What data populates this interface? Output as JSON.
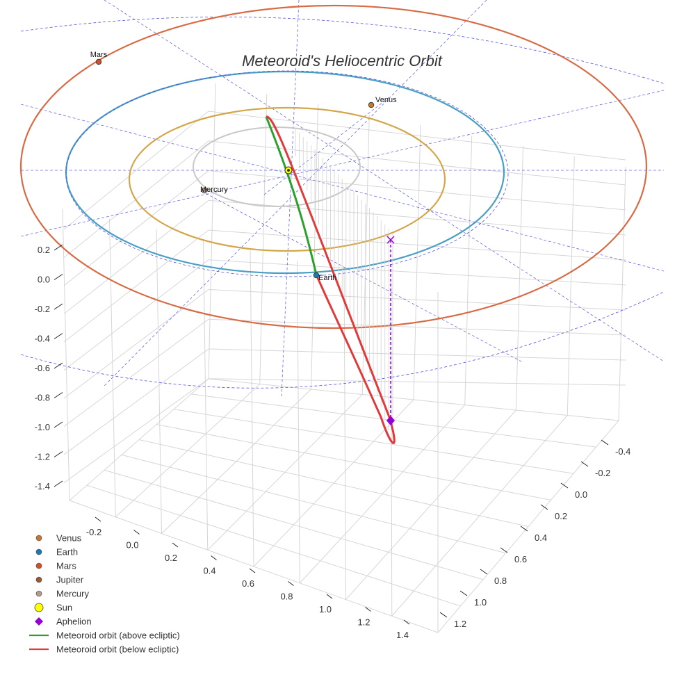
{
  "chart_data": {
    "type": "scatter",
    "title": "Meteoroid's Heliocentric Orbit",
    "colors": {
      "venus": "#c8782a",
      "earth": "#1f77b4",
      "mars": "#d0502a",
      "jupiter": "#9c5a33",
      "mercury": "#b39b90",
      "sun": "#ffff00",
      "aphelion": "#9400d3",
      "orbit_above": "#2ca02c",
      "orbit_below": "#e03a3a",
      "venus_orbit": "#d4a64a",
      "earth_orbit": "#4a9fc4",
      "mars_orbit": "#d86a44",
      "mercury_orbit": "#c8c8c8",
      "guide": "#4f4fe0"
    },
    "axes": {
      "x_ticks": [
        "-0.4",
        "-0.2",
        "0.0",
        "0.2",
        "0.4",
        "0.6",
        "0.8",
        "1.0",
        "1.2"
      ],
      "y_ticks": [
        "-0.2",
        "0.0",
        "0.2",
        "0.4",
        "0.6",
        "0.8",
        "1.0",
        "1.2",
        "1.4"
      ],
      "z_ticks": [
        "0.2",
        "0.0",
        "-0.2",
        "-0.4",
        "-0.6",
        "-0.8",
        "-1.0",
        "-1.2",
        "-1.4"
      ],
      "grid": true
    },
    "planets": [
      {
        "name": "Mars",
        "key": "mars"
      },
      {
        "name": "Venus",
        "key": "venus"
      },
      {
        "name": "Mercury",
        "key": "mercury"
      },
      {
        "name": "Earth",
        "key": "earth"
      }
    ],
    "legend": {
      "position": "bottom-left",
      "entries": [
        {
          "label": "Venus",
          "marker": "circle",
          "key": "venus"
        },
        {
          "label": "Earth",
          "marker": "circle",
          "key": "earth"
        },
        {
          "label": "Mars",
          "marker": "circle",
          "key": "mars"
        },
        {
          "label": "Jupiter",
          "marker": "circle",
          "key": "jupiter"
        },
        {
          "label": "Mercury",
          "marker": "circle",
          "key": "mercury"
        },
        {
          "label": "Sun",
          "marker": "sun",
          "key": "sun"
        },
        {
          "label": "Aphelion",
          "marker": "diamond",
          "key": "aphelion"
        },
        {
          "label": "Meteoroid orbit (above ecliptic)",
          "marker": "line",
          "key": "orbit_above"
        },
        {
          "label": "Meteoroid orbit (below ecliptic)",
          "marker": "line",
          "key": "orbit_below"
        }
      ]
    }
  }
}
